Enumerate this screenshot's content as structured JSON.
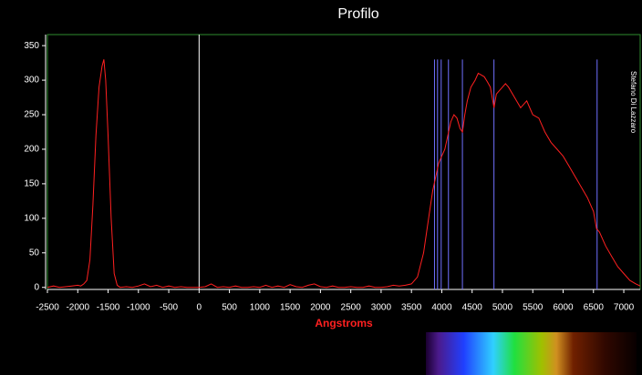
{
  "chart_data": {
    "type": "line",
    "title": "Profilo",
    "x_label": "Angstroms",
    "annotation": "Stefano Di Lazzaro",
    "x": [
      -2500,
      -2400,
      -2300,
      -2200,
      -2100,
      -2000,
      -1950,
      -1900,
      -1850,
      -1800,
      -1750,
      -1700,
      -1650,
      -1600,
      -1570,
      -1540,
      -1500,
      -1450,
      -1400,
      -1350,
      -1300,
      -1200,
      -1100,
      -1000,
      -900,
      -800,
      -700,
      -600,
      -500,
      -400,
      -300,
      -200,
      -100,
      0,
      100,
      200,
      300,
      400,
      500,
      600,
      700,
      800,
      900,
      1000,
      1100,
      1200,
      1300,
      1400,
      1500,
      1600,
      1700,
      1800,
      1900,
      2000,
      2100,
      2200,
      2300,
      2400,
      2500,
      2600,
      2700,
      2800,
      2900,
      3000,
      3100,
      3200,
      3300,
      3400,
      3500,
      3600,
      3700,
      3750,
      3800,
      3850,
      3900,
      3950,
      4000,
      4050,
      4100,
      4150,
      4200,
      4250,
      4300,
      4340,
      4380,
      4420,
      4480,
      4550,
      4600,
      4700,
      4750,
      4800,
      4860,
      4900,
      5000,
      5050,
      5100,
      5200,
      5300,
      5400,
      5500,
      5600,
      5700,
      5800,
      5900,
      6000,
      6100,
      6200,
      6300,
      6400,
      6500,
      6550,
      6600,
      6700,
      6800,
      6900,
      7000,
      7100,
      7200,
      7270
    ],
    "series": [
      {
        "name": "Profilo",
        "color": "#ff2020",
        "values": [
          0,
          2,
          0,
          1,
          2,
          3,
          2,
          5,
          10,
          40,
          120,
          220,
          290,
          320,
          330,
          300,
          220,
          100,
          20,
          3,
          0,
          1,
          0,
          2,
          5,
          1,
          3,
          0,
          2,
          0,
          1,
          0,
          0,
          0,
          1,
          5,
          0,
          1,
          0,
          2,
          0,
          0,
          1,
          0,
          3,
          0,
          2,
          0,
          4,
          1,
          0,
          3,
          5,
          1,
          0,
          2,
          0,
          0,
          1,
          0,
          0,
          2,
          0,
          0,
          1,
          3,
          2,
          3,
          5,
          15,
          50,
          80,
          110,
          140,
          160,
          180,
          190,
          200,
          220,
          240,
          250,
          245,
          230,
          225,
          250,
          270,
          290,
          300,
          310,
          305,
          298,
          290,
          260,
          280,
          290,
          295,
          290,
          275,
          260,
          270,
          250,
          245,
          225,
          210,
          200,
          190,
          175,
          160,
          145,
          130,
          110,
          85,
          80,
          60,
          45,
          30,
          20,
          10,
          5,
          2
        ]
      }
    ],
    "reference_lines": {
      "color": "#7070ff",
      "top": 330,
      "x": [
        3880,
        3930,
        3990,
        4110,
        4340,
        4860,
        6560
      ]
    },
    "zero_line_color": "#ffffff",
    "border_color": "#2e8b2e",
    "xlim": [
      -2500,
      7270
    ],
    "xticks": [
      -2500,
      -2000,
      -1500,
      -1000,
      -500,
      0,
      500,
      1000,
      1500,
      2000,
      2500,
      3000,
      3500,
      4000,
      4500,
      5000,
      5500,
      6000,
      6500,
      7000
    ],
    "ylim": [
      -3,
      366
    ],
    "yticks": [
      0,
      50,
      100,
      150,
      200,
      250,
      300,
      350
    ]
  }
}
